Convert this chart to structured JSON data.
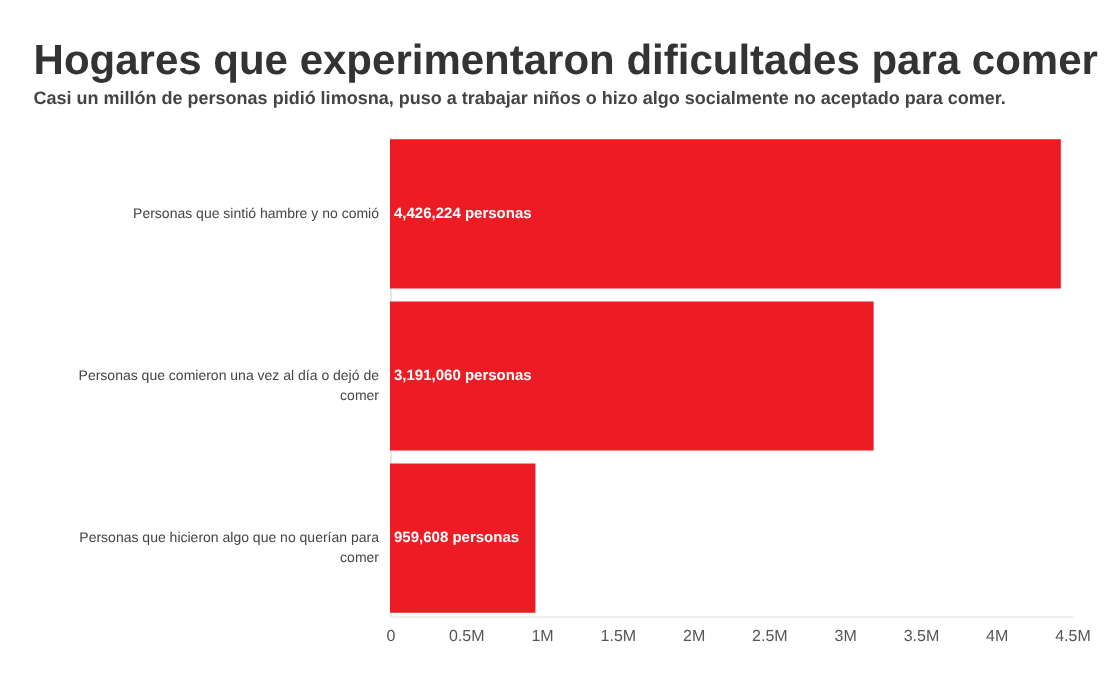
{
  "chart_data": {
    "type": "bar",
    "orientation": "horizontal",
    "title": "Hogares que experimentaron dificultades para comer",
    "subtitle": "Casi un millón de personas pidió limosna, puso a trabajar niños o hizo algo socialmente no aceptado para comer.",
    "categories": [
      "Personas que sintió hambre y no comió",
      "Personas que comieron una vez al día o dejó de comer",
      "Personas que hicieron algo que no querían para comer"
    ],
    "values": [
      4426224,
      3191060,
      959608
    ],
    "color": "#ed1c24",
    "value_labels": [
      "4,426,224 personas",
      "3,191,060 personas",
      "959,608 personas"
    ],
    "xlim": [
      0,
      4500000
    ],
    "xticks": [
      0,
      {
        "value": 500000,
        "label": "0.5M"
      },
      {
        "value": 1000000,
        "label": "1M"
      },
      {
        "value": 1500000,
        "label": "1.5M"
      },
      {
        "value": 2000000,
        "label": "2M"
      },
      {
        "value": 2500000,
        "label": "2.5M"
      },
      {
        "value": 3000000,
        "label": "3M"
      },
      {
        "value": 3500000,
        "label": "3.5M"
      },
      {
        "value": 4000000,
        "label": "4M"
      },
      {
        "value": 4500000,
        "label": "4.5M"
      }
    ],
    "grid": false
  }
}
